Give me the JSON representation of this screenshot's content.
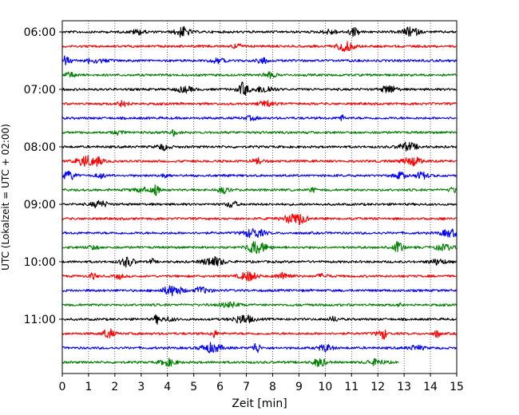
{
  "chart_data": {
    "type": "line",
    "title": "",
    "xlabel": "Zeit  [min]",
    "ylabel": "UTC (Lokalzeit = UTC + 02:00)",
    "xlim": [
      0,
      15
    ],
    "x_ticks": [
      "0",
      "1",
      "2",
      "3",
      "4",
      "5",
      "6",
      "7",
      "8",
      "9",
      "10",
      "11",
      "12",
      "13",
      "14",
      "15"
    ],
    "y_ticks": [
      "06:00",
      "07:00",
      "08:00",
      "09:00",
      "10:00",
      "11:00"
    ],
    "grid": "vertical dotted",
    "legend": "none",
    "trace_interval_minutes": 15,
    "color_cycle": [
      "#000000",
      "#ff0000",
      "#0000ff",
      "#008000"
    ],
    "traces": [
      {
        "start": "06:00",
        "color": "#000000",
        "end_minute": 15
      },
      {
        "start": "06:15",
        "color": "#ff0000",
        "end_minute": 15
      },
      {
        "start": "06:30",
        "color": "#0000ff",
        "end_minute": 15
      },
      {
        "start": "06:45",
        "color": "#008000",
        "end_minute": 15
      },
      {
        "start": "07:00",
        "color": "#000000",
        "end_minute": 15
      },
      {
        "start": "07:15",
        "color": "#ff0000",
        "end_minute": 15
      },
      {
        "start": "07:30",
        "color": "#0000ff",
        "end_minute": 15
      },
      {
        "start": "07:45",
        "color": "#008000",
        "end_minute": 15
      },
      {
        "start": "08:00",
        "color": "#000000",
        "end_minute": 15
      },
      {
        "start": "08:15",
        "color": "#ff0000",
        "end_minute": 15
      },
      {
        "start": "08:30",
        "color": "#0000ff",
        "end_minute": 15
      },
      {
        "start": "08:45",
        "color": "#008000",
        "end_minute": 15
      },
      {
        "start": "09:00",
        "color": "#000000",
        "end_minute": 15
      },
      {
        "start": "09:15",
        "color": "#ff0000",
        "end_minute": 15
      },
      {
        "start": "09:30",
        "color": "#0000ff",
        "end_minute": 15
      },
      {
        "start": "09:45",
        "color": "#008000",
        "end_minute": 15
      },
      {
        "start": "10:00",
        "color": "#000000",
        "end_minute": 15
      },
      {
        "start": "10:15",
        "color": "#ff0000",
        "end_minute": 15
      },
      {
        "start": "10:30",
        "color": "#0000ff",
        "end_minute": 15
      },
      {
        "start": "10:45",
        "color": "#008000",
        "end_minute": 15
      },
      {
        "start": "11:00",
        "color": "#000000",
        "end_minute": 15
      },
      {
        "start": "11:15",
        "color": "#ff0000",
        "end_minute": 15
      },
      {
        "start": "11:30",
        "color": "#0000ff",
        "end_minute": 15
      },
      {
        "start": "11:45",
        "color": "#008000",
        "end_minute": 12.8
      }
    ]
  }
}
